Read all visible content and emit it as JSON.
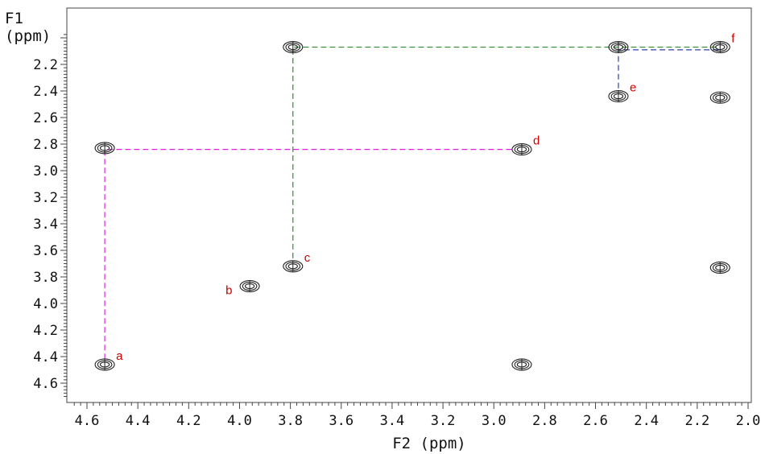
{
  "chart_data": {
    "type": "scatter",
    "xlabel": "F2 (ppm)",
    "ylabel_line1": "F1",
    "ylabel_line2": "(ppm)",
    "xlim": [
      4.65,
      2.0
    ],
    "ylim": [
      1.95,
      4.7
    ],
    "x_ticks": [
      "4.6",
      "4.4",
      "4.2",
      "4.0",
      "3.8",
      "3.6",
      "3.4",
      "3.2",
      "3.0",
      "2.8",
      "2.6",
      "2.4",
      "2.2",
      "2.0"
    ],
    "x_tick_values": [
      4.6,
      4.4,
      4.2,
      4.0,
      3.8,
      3.6,
      3.4,
      3.2,
      3.0,
      2.8,
      2.6,
      2.4,
      2.2,
      2.0
    ],
    "y_ticks": [
      "2.2",
      "2.4",
      "2.6",
      "2.8",
      "3.0",
      "3.2",
      "3.4",
      "3.6",
      "3.8",
      "4.0",
      "4.2",
      "4.4",
      "4.6"
    ],
    "y_tick_values": [
      2.2,
      2.4,
      2.6,
      2.8,
      3.0,
      3.2,
      3.4,
      3.6,
      3.8,
      4.0,
      4.2,
      4.4,
      4.6
    ],
    "peaks": [
      {
        "x": 4.53,
        "y": 2.83,
        "label": ""
      },
      {
        "x": 4.53,
        "y": 4.46,
        "label": "a"
      },
      {
        "x": 3.96,
        "y": 3.87,
        "label": "b"
      },
      {
        "x": 3.79,
        "y": 3.72,
        "label": "c"
      },
      {
        "x": 3.79,
        "y": 2.07,
        "label": ""
      },
      {
        "x": 2.89,
        "y": 2.84,
        "label": "d"
      },
      {
        "x": 2.89,
        "y": 4.46,
        "label": ""
      },
      {
        "x": 2.51,
        "y": 2.07,
        "label": ""
      },
      {
        "x": 2.51,
        "y": 2.44,
        "label": "e"
      },
      {
        "x": 2.11,
        "y": 2.07,
        "label": "f"
      },
      {
        "x": 2.11,
        "y": 2.45,
        "label": ""
      },
      {
        "x": 2.11,
        "y": 3.73,
        "label": ""
      }
    ],
    "correlation_lines": [
      {
        "color": "#e020e0",
        "points": [
          [
            4.53,
            4.42
          ],
          [
            4.53,
            2.84
          ],
          [
            2.93,
            2.84
          ]
        ]
      },
      {
        "color": "#2e8b2e",
        "points": [
          [
            3.79,
            3.66
          ],
          [
            3.79,
            2.07
          ],
          [
            2.11,
            2.07
          ]
        ]
      },
      {
        "color": "#3040b0",
        "points": [
          [
            2.51,
            2.38
          ],
          [
            2.51,
            2.09
          ],
          [
            2.11,
            2.09
          ]
        ]
      }
    ],
    "colors": {
      "contour": "#222222",
      "peak_label": "#cc0000",
      "axis": "#444444"
    }
  }
}
